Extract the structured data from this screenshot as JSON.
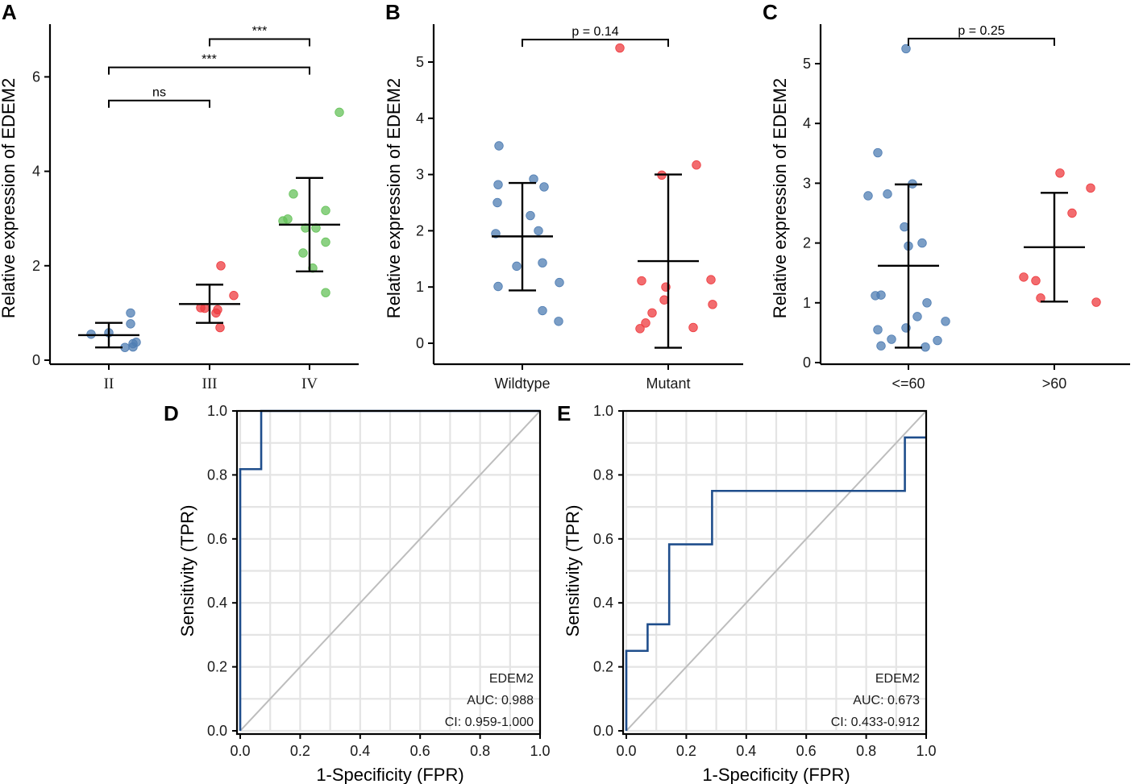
{
  "colors": {
    "blue": "#4f7db3",
    "red": "#ee3b3f",
    "green": "#66c25a",
    "roc": "#1f4e8c"
  },
  "chart_data": [
    {
      "panel": "A",
      "type": "scatter",
      "ylabel": "Relative expression of EDEM2",
      "xlabel": "",
      "categories": [
        "II",
        "III",
        "IV"
      ],
      "category_colors": [
        "blue",
        "red",
        "green"
      ],
      "ylim": [
        0,
        7
      ],
      "yticks": [
        0,
        2,
        4,
        6
      ],
      "points": [
        [
          0.55,
          0.58,
          1.0,
          0.77,
          0.38,
          0.35,
          0.27,
          0.28
        ],
        [
          1.11,
          1.1,
          2.0,
          1.07,
          1.0,
          1.37,
          0.69
        ],
        [
          5.25,
          3.52,
          2.99,
          2.95,
          3.17,
          2.8,
          2.8,
          2.5,
          2.27,
          1.95,
          1.43
        ]
      ],
      "means": [
        0.53,
        1.19,
        2.87
      ],
      "sd_low": [
        0.27,
        0.79,
        1.88
      ],
      "sd_high": [
        0.79,
        1.6,
        3.86
      ],
      "comparisons": [
        {
          "from": 0,
          "to": 1,
          "y": 5.5,
          "label": "ns"
        },
        {
          "from": 0,
          "to": 2,
          "y": 6.2,
          "label": "***"
        },
        {
          "from": 1,
          "to": 2,
          "y": 6.8,
          "label": "***"
        }
      ]
    },
    {
      "panel": "B",
      "type": "scatter",
      "ylabel": "Relative expression of EDEM2",
      "xlabel": "",
      "categories": [
        "Wildtype",
        "Mutant"
      ],
      "category_colors": [
        "blue",
        "red"
      ],
      "ylim": [
        -0.2,
        5.6
      ],
      "yticks": [
        0,
        1,
        2,
        3,
        4,
        5
      ],
      "points": [
        [
          3.51,
          2.92,
          2.82,
          2.78,
          2.5,
          2.27,
          2.0,
          1.95,
          1.43,
          1.37,
          1.08,
          1.01,
          0.58,
          0.39
        ],
        [
          5.25,
          3.17,
          2.99,
          1.11,
          1.13,
          1.0,
          0.77,
          0.69,
          0.54,
          0.36,
          0.28,
          0.26
        ]
      ],
      "means": [
        1.9,
        1.46
      ],
      "sd_low": [
        0.94,
        -0.08
      ],
      "sd_high": [
        2.85,
        3.0
      ],
      "comparisons": [
        {
          "from": 0,
          "to": 1,
          "y": 5.4,
          "label": "p = 0.14"
        }
      ]
    },
    {
      "panel": "C",
      "type": "scatter",
      "ylabel": "Relative expression of EDEM2",
      "xlabel": "",
      "categories": [
        "<=60",
        ">60"
      ],
      "category_colors": [
        "blue",
        "red"
      ],
      "ylim": [
        0,
        5.6
      ],
      "yticks": [
        0,
        1,
        2,
        3,
        4,
        5
      ],
      "points": [
        [
          5.25,
          3.51,
          2.99,
          2.82,
          2.79,
          2.27,
          2.0,
          1.95,
          1.13,
          1.12,
          1.0,
          0.77,
          0.69,
          0.58,
          0.55,
          0.39,
          0.37,
          0.28,
          0.26
        ],
        [
          3.17,
          2.92,
          2.5,
          1.43,
          1.37,
          1.08,
          1.01
        ]
      ],
      "means": [
        1.62,
        1.93
      ],
      "sd_low": [
        0.25,
        1.02
      ],
      "sd_high": [
        2.98,
        2.84
      ],
      "comparisons": [
        {
          "from": 0,
          "to": 1,
          "y": 5.42,
          "label": "p = 0.25"
        }
      ]
    },
    {
      "panel": "D",
      "type": "line",
      "xlabel": "1-Specificity (FPR)",
      "ylabel": "Sensitivity (TPR)",
      "xlim": [
        0,
        1
      ],
      "ylim": [
        0,
        1
      ],
      "ticks": [
        0.0,
        0.2,
        0.4,
        0.6,
        0.8,
        1.0
      ],
      "tick_labels": [
        "0.0",
        "0.2",
        "0.4",
        "0.6",
        "0.8",
        "1.0"
      ],
      "roc_x": [
        0,
        0,
        0.07,
        0.07,
        1
      ],
      "roc_y": [
        0,
        0.818,
        0.818,
        1.0,
        1.0
      ],
      "legend": [
        "EDEM2",
        "AUC: 0.988",
        "CI: 0.959-1.000"
      ]
    },
    {
      "panel": "E",
      "type": "line",
      "xlabel": "1-Specificity (FPR)",
      "ylabel": "Sensitivity (TPR)",
      "xlim": [
        0,
        1
      ],
      "ylim": [
        0,
        1
      ],
      "ticks": [
        0.0,
        0.2,
        0.4,
        0.6,
        0.8,
        1.0
      ],
      "tick_labels": [
        "0.0",
        "0.2",
        "0.4",
        "0.6",
        "0.8",
        "1.0"
      ],
      "roc_x": [
        0,
        0,
        0.071,
        0.071,
        0.143,
        0.143,
        0.286,
        0.286,
        0.929,
        0.929,
        1.0
      ],
      "roc_y": [
        0,
        0.25,
        0.25,
        0.333,
        0.333,
        0.583,
        0.583,
        0.75,
        0.75,
        0.917,
        0.917
      ],
      "legend": [
        "EDEM2",
        "AUC: 0.673",
        "CI: 0.433-0.912"
      ]
    }
  ]
}
